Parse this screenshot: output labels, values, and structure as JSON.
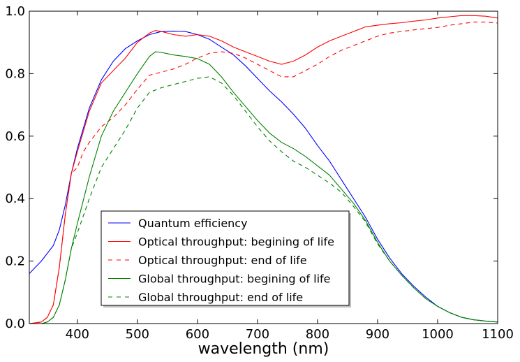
{
  "chart_data": {
    "type": "line",
    "title": "",
    "xlabel": "wavelength (nm)",
    "ylabel": "",
    "xlim": [
      320,
      1100
    ],
    "ylim": [
      0.0,
      1.0
    ],
    "grid": false,
    "legend_position": "lower-left",
    "x_ticks": [
      400,
      500,
      600,
      700,
      800,
      900,
      1000,
      1100
    ],
    "x_tick_labels": [
      "400",
      "500",
      "600",
      "700",
      "800",
      "900",
      "1000",
      "1100"
    ],
    "y_ticks": [
      0.0,
      0.2,
      0.4,
      0.6,
      0.8,
      1.0
    ],
    "y_tick_labels": [
      "0.0",
      "0.2",
      "0.4",
      "0.6",
      "0.8",
      "1.0"
    ],
    "series": [
      {
        "name": "Quantum efficiency",
        "color": "#0000ff",
        "style": "solid",
        "x": [
          320,
          340,
          360,
          370,
          380,
          390,
          400,
          420,
          440,
          460,
          480,
          500,
          520,
          540,
          560,
          580,
          600,
          620,
          640,
          660,
          680,
          700,
          720,
          740,
          760,
          780,
          800,
          820,
          840,
          860,
          880,
          900,
          920,
          940,
          960,
          980,
          1000,
          1020,
          1040,
          1060,
          1080,
          1100
        ],
        "y": [
          0.16,
          0.2,
          0.25,
          0.3,
          0.38,
          0.48,
          0.56,
          0.69,
          0.78,
          0.84,
          0.88,
          0.905,
          0.925,
          0.935,
          0.936,
          0.935,
          0.925,
          0.91,
          0.885,
          0.86,
          0.825,
          0.785,
          0.745,
          0.71,
          0.67,
          0.625,
          0.57,
          0.52,
          0.46,
          0.4,
          0.34,
          0.27,
          0.21,
          0.16,
          0.12,
          0.085,
          0.055,
          0.035,
          0.02,
          0.012,
          0.008,
          0.005
        ]
      },
      {
        "name": "Optical throughput: begining of life",
        "color": "#ff0000",
        "style": "solid",
        "x": [
          320,
          340,
          350,
          360,
          370,
          380,
          390,
          400,
          420,
          440,
          460,
          480,
          500,
          520,
          530,
          540,
          560,
          580,
          600,
          620,
          640,
          660,
          680,
          700,
          720,
          740,
          760,
          780,
          800,
          820,
          840,
          860,
          880,
          900,
          920,
          940,
          960,
          980,
          1000,
          1020,
          1040,
          1060,
          1080,
          1100
        ],
        "y": [
          0.0,
          0.005,
          0.02,
          0.06,
          0.18,
          0.35,
          0.48,
          0.55,
          0.68,
          0.77,
          0.81,
          0.85,
          0.9,
          0.93,
          0.938,
          0.935,
          0.925,
          0.92,
          0.925,
          0.92,
          0.905,
          0.885,
          0.87,
          0.855,
          0.84,
          0.83,
          0.84,
          0.86,
          0.885,
          0.905,
          0.92,
          0.935,
          0.95,
          0.955,
          0.96,
          0.963,
          0.968,
          0.972,
          0.978,
          0.982,
          0.986,
          0.986,
          0.984,
          0.978
        ]
      },
      {
        "name": "Optical throughput: end of life",
        "color": "#ff0000",
        "style": "dashed",
        "x": [
          320,
          340,
          350,
          360,
          370,
          380,
          390,
          400,
          410,
          420,
          440,
          460,
          480,
          500,
          520,
          540,
          560,
          580,
          600,
          620,
          640,
          660,
          680,
          700,
          720,
          740,
          760,
          780,
          800,
          820,
          840,
          860,
          880,
          900,
          920,
          940,
          960,
          980,
          1000,
          1020,
          1040,
          1060,
          1080,
          1100
        ],
        "y": [
          0.0,
          0.005,
          0.02,
          0.06,
          0.18,
          0.35,
          0.48,
          0.5,
          0.55,
          0.58,
          0.63,
          0.66,
          0.7,
          0.75,
          0.795,
          0.805,
          0.815,
          0.83,
          0.85,
          0.865,
          0.87,
          0.865,
          0.85,
          0.83,
          0.81,
          0.79,
          0.79,
          0.81,
          0.83,
          0.855,
          0.875,
          0.89,
          0.905,
          0.92,
          0.93,
          0.935,
          0.94,
          0.944,
          0.948,
          0.955,
          0.96,
          0.965,
          0.965,
          0.962
        ]
      },
      {
        "name": "Global throughput: begining of life",
        "color": "#008000",
        "style": "solid",
        "x": [
          320,
          340,
          350,
          360,
          370,
          380,
          390,
          400,
          420,
          440,
          460,
          480,
          500,
          520,
          530,
          540,
          560,
          580,
          600,
          620,
          640,
          660,
          680,
          700,
          720,
          740,
          760,
          780,
          800,
          820,
          840,
          860,
          880,
          900,
          920,
          940,
          960,
          980,
          1000,
          1020,
          1040,
          1060,
          1080,
          1100
        ],
        "y": [
          0.0,
          0.0,
          0.005,
          0.02,
          0.06,
          0.14,
          0.24,
          0.32,
          0.47,
          0.6,
          0.68,
          0.74,
          0.8,
          0.855,
          0.87,
          0.868,
          0.86,
          0.855,
          0.848,
          0.83,
          0.79,
          0.74,
          0.695,
          0.65,
          0.61,
          0.58,
          0.56,
          0.535,
          0.505,
          0.475,
          0.43,
          0.385,
          0.33,
          0.26,
          0.2,
          0.155,
          0.115,
          0.08,
          0.055,
          0.035,
          0.02,
          0.012,
          0.008,
          0.005
        ]
      },
      {
        "name": "Global throughput: end of life",
        "color": "#008000",
        "style": "dashed",
        "x": [
          320,
          340,
          350,
          360,
          370,
          380,
          390,
          400,
          420,
          440,
          460,
          480,
          500,
          520,
          540,
          560,
          580,
          600,
          620,
          640,
          660,
          680,
          700,
          720,
          740,
          760,
          780,
          800,
          820,
          840,
          860,
          880,
          900,
          920,
          940,
          960,
          980,
          1000,
          1020,
          1040,
          1060,
          1080,
          1100
        ],
        "y": [
          0.0,
          0.0,
          0.005,
          0.02,
          0.06,
          0.14,
          0.24,
          0.29,
          0.4,
          0.5,
          0.56,
          0.62,
          0.69,
          0.74,
          0.755,
          0.765,
          0.775,
          0.785,
          0.79,
          0.77,
          0.73,
          0.68,
          0.63,
          0.585,
          0.55,
          0.52,
          0.5,
          0.475,
          0.45,
          0.42,
          0.375,
          0.325,
          0.255,
          0.2,
          0.155,
          0.115,
          0.08,
          0.055,
          0.035,
          0.02,
          0.012,
          0.008,
          0.005
        ]
      }
    ]
  }
}
